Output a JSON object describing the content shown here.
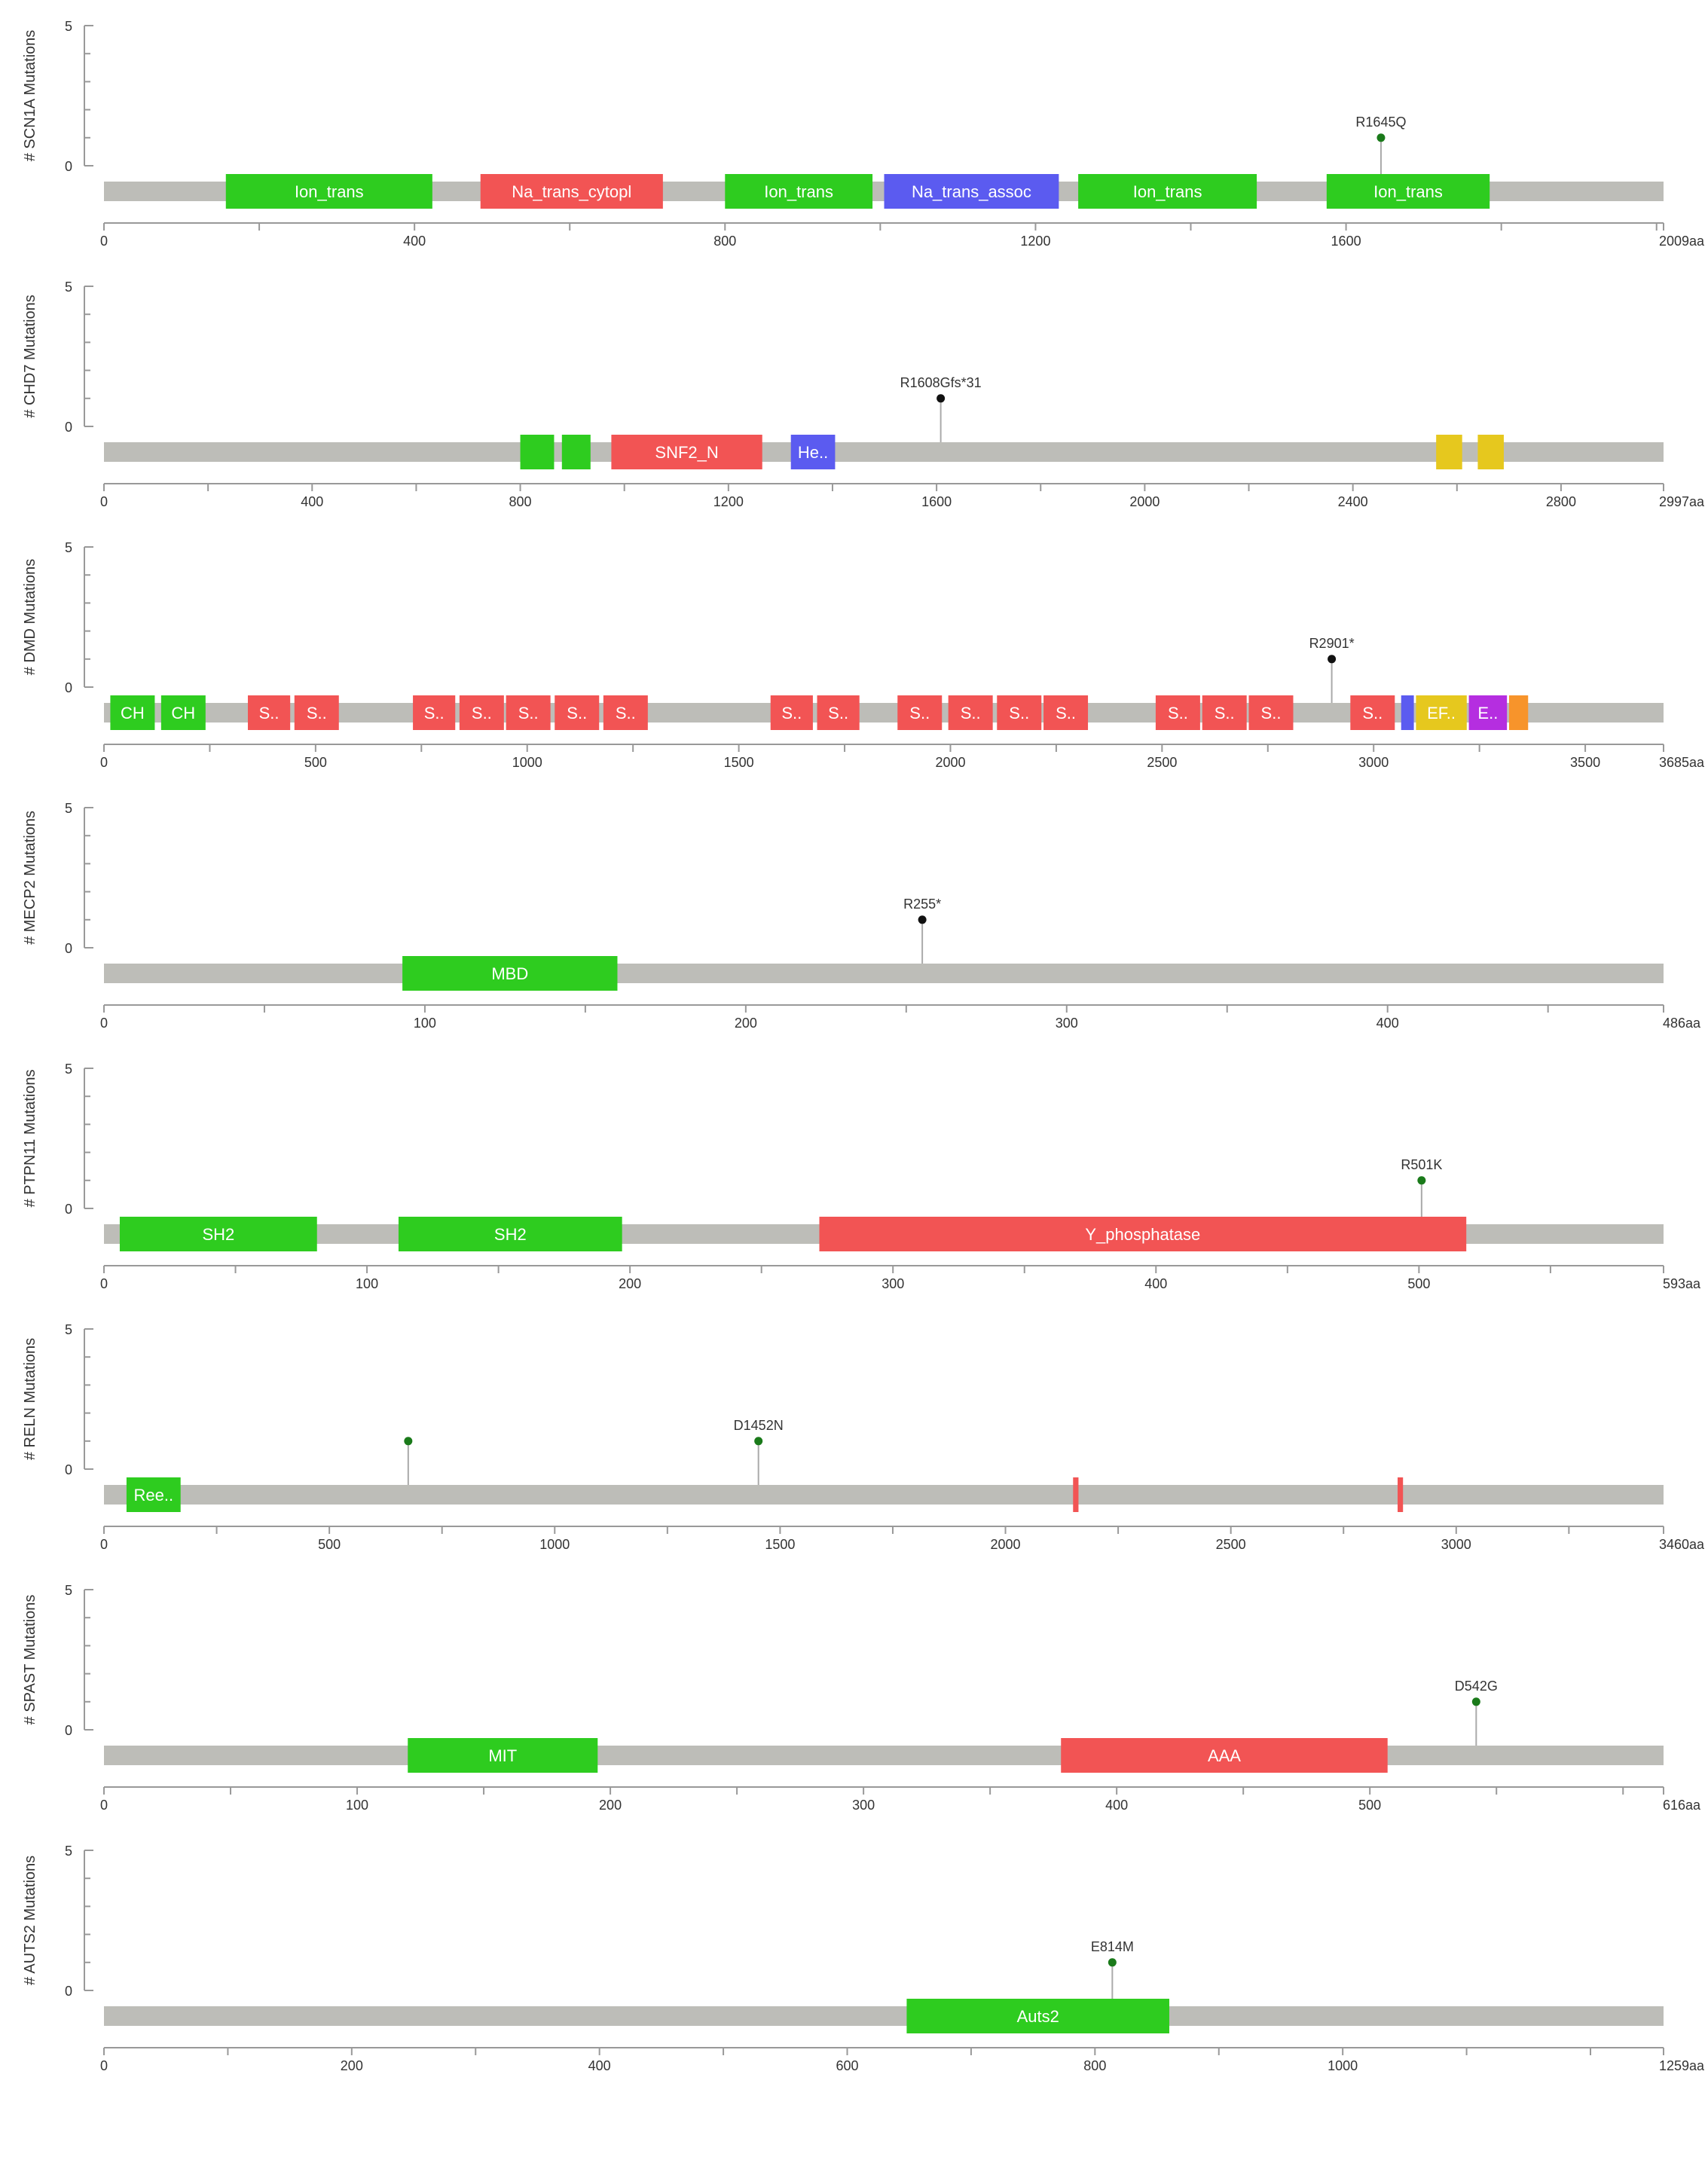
{
  "chart_data": [
    {
      "type": "lollipop",
      "gene": "SCN1A",
      "ylabel": "# SCN1A Mutations",
      "ylim": [
        0,
        5
      ],
      "y_ticks": [
        "5",
        "0"
      ],
      "length": 2009,
      "end_label": "2009aa",
      "x_ticks": [
        0,
        400,
        800,
        1200,
        1600
      ],
      "minor_step": 200,
      "domains": [
        {
          "start": 157,
          "end": 423,
          "label": "Ion_trans",
          "color": "#2ecc1f"
        },
        {
          "start": 485,
          "end": 720,
          "label": "Na_trans_cytopl",
          "color": "#f25454"
        },
        {
          "start": 800,
          "end": 990,
          "label": "Ion_trans",
          "color": "#2ecc1f"
        },
        {
          "start": 1005,
          "end": 1230,
          "label": "Na_trans_assoc",
          "color": "#5b5bf0"
        },
        {
          "start": 1255,
          "end": 1485,
          "label": "Ion_trans",
          "color": "#2ecc1f"
        },
        {
          "start": 1575,
          "end": 1785,
          "label": "Ion_trans",
          "color": "#2ecc1f"
        }
      ],
      "mutations": [
        {
          "pos": 1645,
          "count": 1,
          "label": "R1645Q",
          "color": "#1a7a1a"
        }
      ]
    },
    {
      "type": "lollipop",
      "gene": "CHD7",
      "ylabel": "# CHD7 Mutations",
      "ylim": [
        0,
        5
      ],
      "y_ticks": [
        "5",
        "0"
      ],
      "length": 2997,
      "end_label": "2997aa",
      "x_ticks": [
        0,
        400,
        800,
        1200,
        1600,
        2000,
        2400,
        2800
      ],
      "minor_step": 200,
      "domains": [
        {
          "start": 800,
          "end": 865,
          "label": "",
          "color": "#2ecc1f"
        },
        {
          "start": 880,
          "end": 935,
          "label": "",
          "color": "#2ecc1f"
        },
        {
          "start": 975,
          "end": 1265,
          "label": "SNF2_N",
          "color": "#f25454"
        },
        {
          "start": 1320,
          "end": 1405,
          "label": "He..",
          "color": "#5b5bf0"
        },
        {
          "start": 2560,
          "end": 2610,
          "label": "",
          "color": "#e6c81e"
        },
        {
          "start": 2640,
          "end": 2690,
          "label": "",
          "color": "#e6c81e"
        }
      ],
      "mutations": [
        {
          "pos": 1608,
          "count": 1,
          "label": "R1608Gfs*31",
          "color": "#111111"
        }
      ]
    },
    {
      "type": "lollipop",
      "gene": "DMD",
      "ylabel": "# DMD Mutations",
      "ylim": [
        0,
        5
      ],
      "y_ticks": [
        "5",
        "0"
      ],
      "length": 3685,
      "end_label": "3685aa",
      "x_ticks": [
        0,
        500,
        1000,
        1500,
        2000,
        2500,
        3000,
        3500
      ],
      "minor_step": 250,
      "domains": [
        {
          "start": 15,
          "end": 120,
          "label": "CH",
          "color": "#2ecc1f"
        },
        {
          "start": 135,
          "end": 240,
          "label": "CH",
          "color": "#2ecc1f"
        },
        {
          "start": 340,
          "end": 440,
          "label": "S..",
          "color": "#f25454"
        },
        {
          "start": 450,
          "end": 555,
          "label": "S..",
          "color": "#f25454"
        },
        {
          "start": 730,
          "end": 830,
          "label": "S..",
          "color": "#f25454"
        },
        {
          "start": 840,
          "end": 945,
          "label": "S..",
          "color": "#f25454"
        },
        {
          "start": 950,
          "end": 1055,
          "label": "S..",
          "color": "#f25454"
        },
        {
          "start": 1065,
          "end": 1170,
          "label": "S..",
          "color": "#f25454"
        },
        {
          "start": 1180,
          "end": 1285,
          "label": "S..",
          "color": "#f25454"
        },
        {
          "start": 1575,
          "end": 1675,
          "label": "S..",
          "color": "#f25454"
        },
        {
          "start": 1685,
          "end": 1785,
          "label": "S..",
          "color": "#f25454"
        },
        {
          "start": 1875,
          "end": 1980,
          "label": "S..",
          "color": "#f25454"
        },
        {
          "start": 1995,
          "end": 2100,
          "label": "S..",
          "color": "#f25454"
        },
        {
          "start": 2110,
          "end": 2215,
          "label": "S..",
          "color": "#f25454"
        },
        {
          "start": 2220,
          "end": 2325,
          "label": "S..",
          "color": "#f25454"
        },
        {
          "start": 2485,
          "end": 2590,
          "label": "S..",
          "color": "#f25454"
        },
        {
          "start": 2595,
          "end": 2700,
          "label": "S..",
          "color": "#f25454"
        },
        {
          "start": 2705,
          "end": 2810,
          "label": "S..",
          "color": "#f25454"
        },
        {
          "start": 2945,
          "end": 3050,
          "label": "S..",
          "color": "#f25454"
        },
        {
          "start": 3065,
          "end": 3095,
          "label": "",
          "color": "#5b5bf0"
        },
        {
          "start": 3100,
          "end": 3220,
          "label": "EF..",
          "color": "#e6c81e"
        },
        {
          "start": 3225,
          "end": 3315,
          "label": "E..",
          "color": "#b52ee0"
        },
        {
          "start": 3320,
          "end": 3365,
          "label": "",
          "color": "#f7942b"
        }
      ],
      "mutations": [
        {
          "pos": 2901,
          "count": 1,
          "label": "R2901*",
          "color": "#111111"
        }
      ]
    },
    {
      "type": "lollipop",
      "gene": "MECP2",
      "ylabel": "# MECP2 Mutations",
      "ylim": [
        0,
        5
      ],
      "y_ticks": [
        "5",
        "0"
      ],
      "length": 486,
      "end_label": "486aa",
      "x_ticks": [
        0,
        100,
        200,
        300,
        400
      ],
      "minor_step": 50,
      "domains": [
        {
          "start": 93,
          "end": 160,
          "label": "MBD",
          "color": "#2ecc1f"
        }
      ],
      "mutations": [
        {
          "pos": 255,
          "count": 1,
          "label": "R255*",
          "color": "#111111"
        }
      ]
    },
    {
      "type": "lollipop",
      "gene": "PTPN11",
      "ylabel": "# PTPN11 Mutations",
      "ylim": [
        0,
        5
      ],
      "y_ticks": [
        "5",
        "0"
      ],
      "length": 593,
      "end_label": "593aa",
      "x_ticks": [
        0,
        100,
        200,
        300,
        400,
        500
      ],
      "minor_step": 50,
      "domains": [
        {
          "start": 6,
          "end": 81,
          "label": "SH2",
          "color": "#2ecc1f"
        },
        {
          "start": 112,
          "end": 197,
          "label": "SH2",
          "color": "#2ecc1f"
        },
        {
          "start": 272,
          "end": 518,
          "label": "Y_phosphatase",
          "color": "#f25454"
        }
      ],
      "mutations": [
        {
          "pos": 501,
          "count": 1,
          "label": "R501K",
          "color": "#1a7a1a"
        }
      ]
    },
    {
      "type": "lollipop",
      "gene": "RELN",
      "ylabel": "# RELN Mutations",
      "ylim": [
        0,
        5
      ],
      "y_ticks": [
        "5",
        "0"
      ],
      "length": 3460,
      "end_label": "3460aa",
      "x_ticks": [
        0,
        500,
        1000,
        1500,
        2000,
        2500,
        3000
      ],
      "minor_step": 250,
      "domains": [
        {
          "start": 50,
          "end": 170,
          "label": "Ree..",
          "color": "#2ecc1f"
        },
        {
          "start": 2150,
          "end": 2162,
          "label": "",
          "color": "#f25454"
        },
        {
          "start": 2870,
          "end": 2882,
          "label": "",
          "color": "#f25454"
        }
      ],
      "mutations": [
        {
          "pos": 675,
          "count": 1,
          "label": "",
          "color": "#1a7a1a"
        },
        {
          "pos": 1452,
          "count": 1,
          "label": "D1452N",
          "color": "#1a7a1a"
        }
      ]
    },
    {
      "type": "lollipop",
      "gene": "SPAST",
      "ylabel": "# SPAST Mutations",
      "ylim": [
        0,
        5
      ],
      "y_ticks": [
        "5",
        "0"
      ],
      "length": 616,
      "end_label": "616aa",
      "x_ticks": [
        0,
        100,
        200,
        300,
        400,
        500
      ],
      "minor_step": 50,
      "domains": [
        {
          "start": 120,
          "end": 195,
          "label": "MIT",
          "color": "#2ecc1f"
        },
        {
          "start": 378,
          "end": 507,
          "label": "AAA",
          "color": "#f25454"
        }
      ],
      "mutations": [
        {
          "pos": 542,
          "count": 1,
          "label": "D542G",
          "color": "#1a7a1a"
        }
      ]
    },
    {
      "type": "lollipop",
      "gene": "AUTS2",
      "ylabel": "# AUTS2 Mutations",
      "ylim": [
        0,
        5
      ],
      "y_ticks": [
        "5",
        "0"
      ],
      "length": 1259,
      "end_label": "1259aa",
      "x_ticks": [
        0,
        200,
        400,
        600,
        800,
        1000
      ],
      "minor_step": 100,
      "domains": [
        {
          "start": 648,
          "end": 860,
          "label": "Auts2",
          "color": "#2ecc1f"
        }
      ],
      "mutations": [
        {
          "pos": 814,
          "count": 1,
          "label": "E814M",
          "color": "#1a7a1a"
        }
      ]
    }
  ]
}
